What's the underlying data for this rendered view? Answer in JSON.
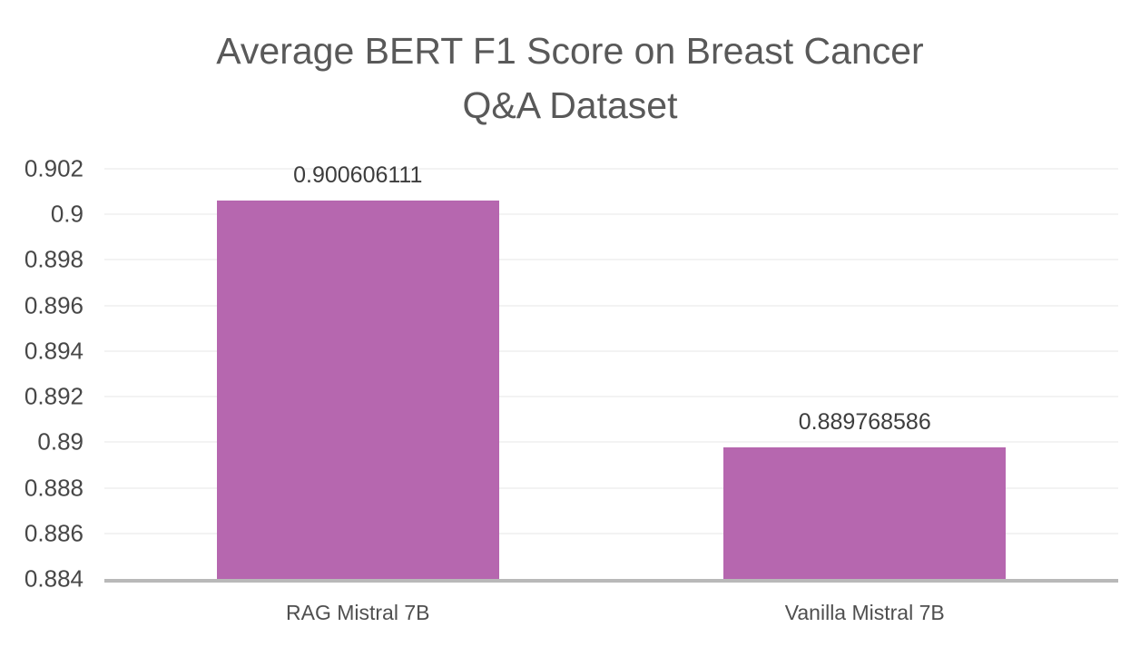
{
  "chart_data": {
    "type": "bar",
    "title": "Average BERT F1 Score on Breast Cancer Q&A Dataset",
    "categories": [
      "RAG Mistral 7B",
      "Vanilla Mistral 7B"
    ],
    "values": [
      0.900606111,
      0.889768586
    ],
    "data_labels": [
      "0.900606111",
      "0.889768586"
    ],
    "xlabel": "",
    "ylabel": "",
    "ylim": [
      0.884,
      0.902
    ],
    "ytick_step": 0.002,
    "yticks": [
      0.902,
      0.9,
      0.898,
      0.896,
      0.894,
      0.892,
      0.89,
      0.888,
      0.886,
      0.884
    ],
    "ytick_labels": [
      "0.902",
      "0.9",
      "0.898",
      "0.896",
      "0.894",
      "0.892",
      "0.89",
      "0.888",
      "0.886",
      "0.884"
    ],
    "grid": "horizontal-light",
    "legend": "none",
    "bar_width_pct": 27.8,
    "colors": {
      "bar": "#b667af",
      "title_text": "#595959",
      "tick_text": "#474747",
      "data_label_text": "#3d3d3d",
      "category_text": "#4f4f4f",
      "gridline": "#f3f3f3",
      "axis_line": "#b9b9b9",
      "background": "#ffffff"
    }
  }
}
